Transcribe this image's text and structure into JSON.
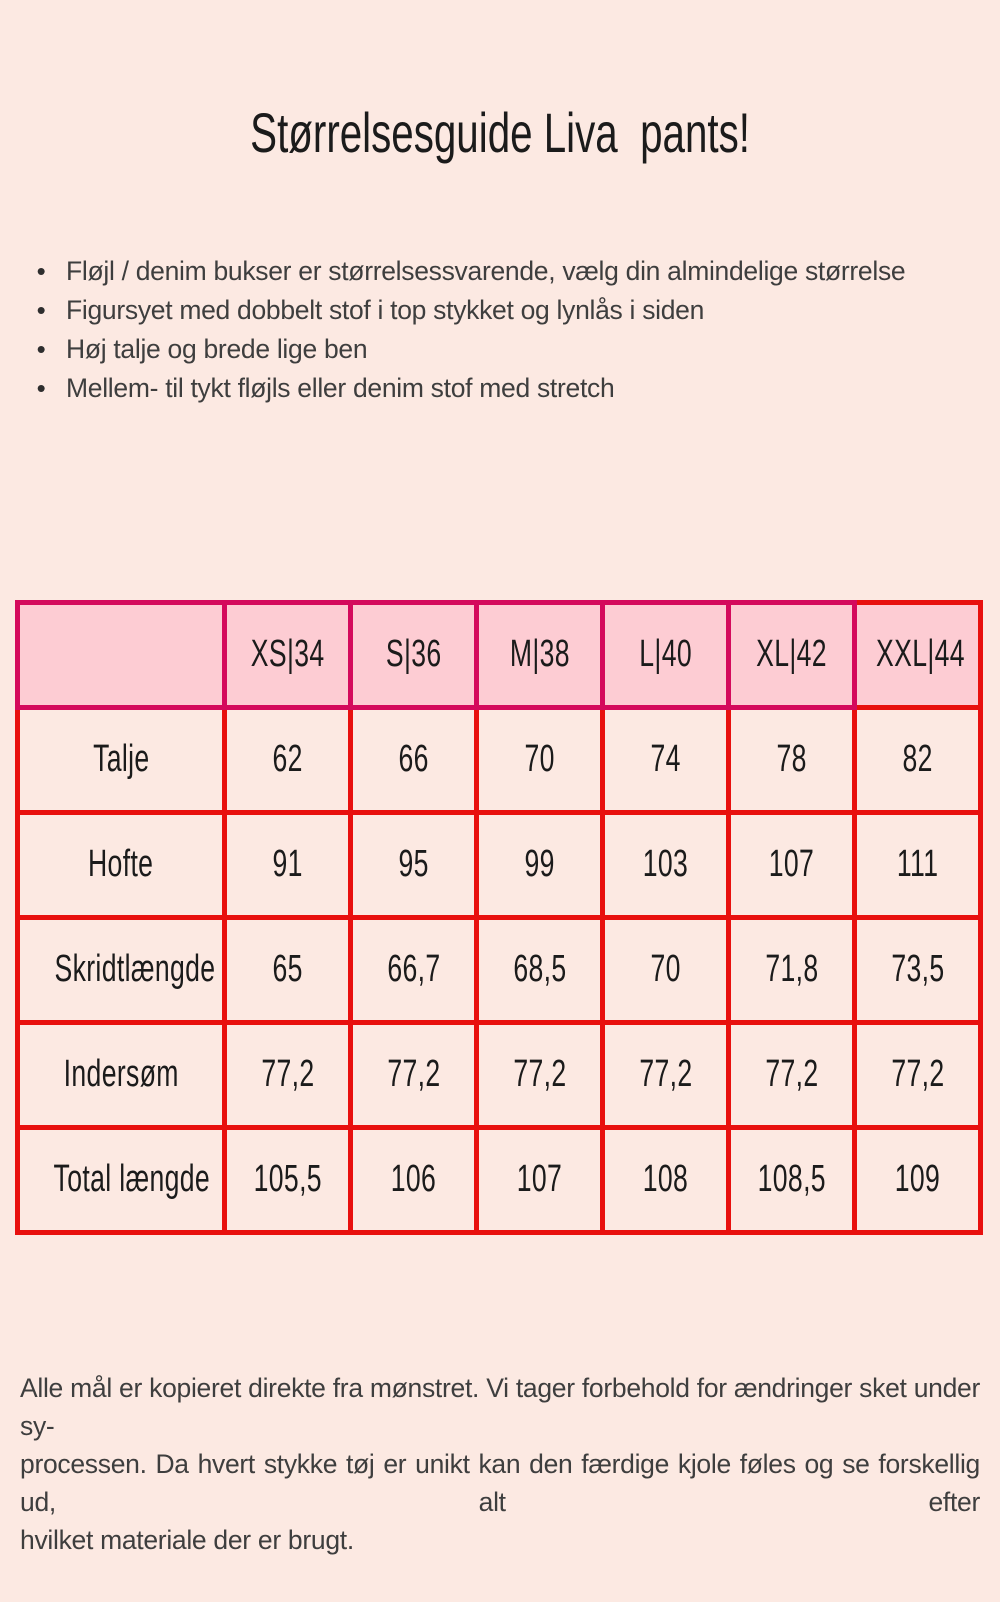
{
  "title": "Størrelsesguide Liva  pants!",
  "bullets": [
    "Fløjl / denim bukser er størrelsessvarende, vælg din almindelige størrelse",
    "Figursyet med dobbelt stof i top stykket og lynlås i siden",
    "Høj talje og brede lige ben",
    "Mellem- til tykt fløjls eller denim stof med stretch"
  ],
  "table": {
    "columns": [
      "",
      "XS|34",
      "S|36",
      "M|38",
      "L|40",
      "XL|42",
      "XXL|44"
    ],
    "rows": [
      {
        "label": "Talje",
        "values": [
          "62",
          "66",
          "70",
          "74",
          "78",
          "82"
        ]
      },
      {
        "label": "Hofte",
        "values": [
          "91",
          "95",
          "99",
          "103",
          "107",
          "111"
        ]
      },
      {
        "label": "Skridtlængde",
        "values": [
          "65",
          "66,7",
          "68,5",
          "70",
          "71,8",
          "73,5"
        ]
      },
      {
        "label": "Indersøm",
        "values": [
          "77,2",
          "77,2",
          "77,2",
          "77,2",
          "77,2",
          "77,2"
        ]
      },
      {
        "label": "Total længde",
        "values": [
          "105,5",
          "106",
          "107",
          "108",
          "108,5",
          "109"
        ]
      }
    ]
  },
  "footer": {
    "lines": [
      "Alle mål er kopieret direkte fra mønstret. Vi tager forbehold for ændringer sket under sy-",
      "processen. Da hvert stykke tøj er unikt kan den færdige kjole føles og se forskellig ud, alt efter",
      "hvilket materiale der er brugt."
    ]
  },
  "colors": {
    "page_bg": "#fce9e2",
    "header_fill": "#fdccd3",
    "header_border": "#d40a5c",
    "grid_red": "#e8100e",
    "title_color": "#131313",
    "text_color": "#3e3e3e",
    "table_text": "#1b1b1b"
  }
}
